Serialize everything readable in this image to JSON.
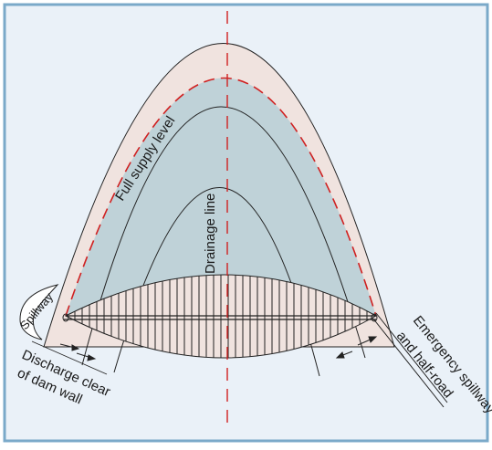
{
  "colors": {
    "frame_border": "#7aa9c9",
    "frame_fill": "#eaf1f8",
    "catchment_fill": "#f0e3df",
    "water_fill": "#bfd2d8",
    "centerline": "#d02020",
    "ink": "#1a1a1a"
  },
  "labels": {
    "full_supply_level": "Full supply level",
    "drainage_line": "Drainage line",
    "spillway": "Spillway",
    "discharge_line1": "Discharge clear",
    "discharge_line2": "of dam wall",
    "emergency_line1": "Emergency spillway",
    "emergency_line2": "and half-road"
  }
}
